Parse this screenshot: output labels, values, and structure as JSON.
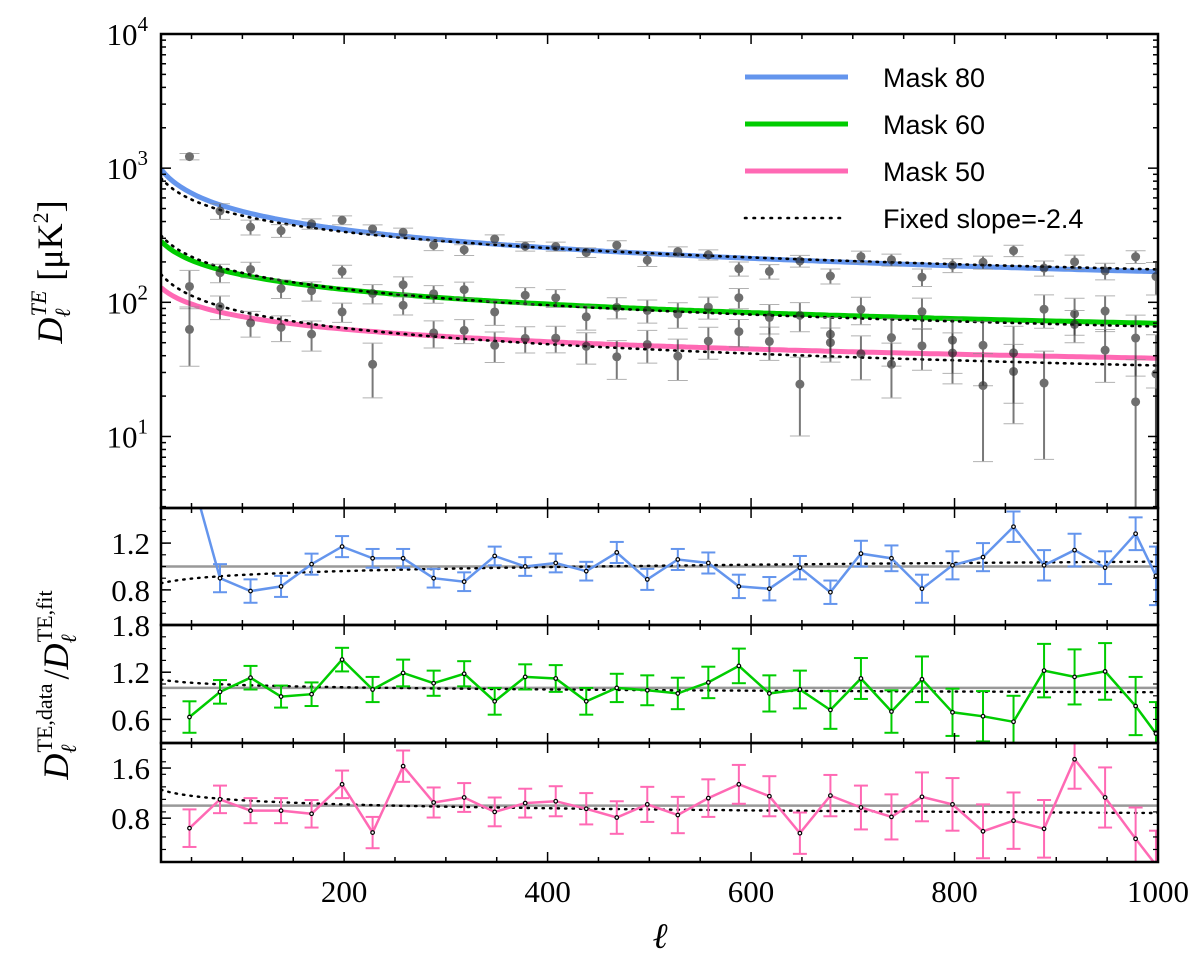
{
  "chart_data": {
    "type": "scatter",
    "title": "",
    "xlabel": "ℓ",
    "xlim": [
      20,
      1000
    ],
    "xticks": [
      200,
      400,
      600,
      800,
      1000
    ],
    "xtick_labels": [
      "200",
      "400",
      "600",
      "800",
      "1000"
    ],
    "main_panel": {
      "yscale": "log",
      "ylim": [
        2.93,
        10000
      ],
      "yticks": [
        10,
        100,
        1000,
        10000
      ],
      "ytick_labels": [
        {
          "base": "10",
          "exp": "1"
        },
        {
          "base": "10",
          "exp": "2"
        },
        {
          "base": "10",
          "exp": "3"
        },
        {
          "base": "10",
          "exp": "4"
        }
      ],
      "ylabel": {
        "symbol": "D",
        "sub": "ℓ",
        "sup": "TE",
        "unit_open": "[μK",
        "unit_sup": "2",
        "unit_close": "]"
      }
    },
    "ratio_panels": {
      "ylabel": {
        "num_symbol": "D",
        "num_sub": "ℓ",
        "num_sup": "TE,data",
        "slash": "/",
        "den_symbol": "D",
        "den_sub": "ℓ",
        "den_sup": "TE,fit"
      },
      "reference_line": 1.0,
      "panels": [
        {
          "series": "Mask 80",
          "ylim": [
            0.5,
            1.5
          ],
          "yticks": [
            0.8,
            1.2
          ],
          "ytick_labels": [
            "0.8",
            "1.2"
          ]
        },
        {
          "series": "Mask 60",
          "ylim": [
            0.3,
            1.8
          ],
          "yticks": [
            0.6,
            1.2,
            1.8
          ],
          "ytick_labels": [
            "0.6",
            "1.2",
            "1.8"
          ]
        },
        {
          "series": "Mask 50",
          "ylim": [
            0.1,
            2.0
          ],
          "yticks": [
            0.8,
            1.6
          ],
          "ytick_labels": [
            "0.8",
            "1.6"
          ]
        }
      ]
    },
    "legend": {
      "placement": "top-right",
      "entries": [
        "Mask 80",
        "Mask 60",
        "Mask 50",
        "Fixed slope=-2.4"
      ]
    },
    "fixed_slope": -2.4,
    "ell": [
      48,
      78,
      108,
      138,
      168,
      198,
      228,
      258,
      288,
      318,
      348,
      378,
      408,
      438,
      468,
      498,
      528,
      558,
      588,
      618,
      648,
      678,
      708,
      738,
      768,
      798,
      828,
      858,
      888,
      918,
      948,
      978,
      998
    ],
    "series": [
      {
        "name": "Mask 80",
        "color": "#6495ED",
        "fit_amplitude_at_1000": 169,
        "fit_slope": -2.45,
        "fixed_amplitude_at_1000": 176,
        "ratio": [
          1.84,
          0.9,
          0.79,
          0.83,
          1.02,
          1.17,
          1.07,
          1.07,
          0.9,
          0.87,
          1.09,
          1.0,
          1.03,
          0.96,
          1.12,
          0.89,
          1.06,
          1.03,
          0.83,
          0.81,
          0.99,
          0.78,
          1.11,
          1.07,
          0.81,
          1.01,
          1.08,
          1.34,
          1.01,
          1.14,
          0.99,
          1.28,
          0.92
        ],
        "ratio_err": [
          0.1,
          0.12,
          0.1,
          0.09,
          0.09,
          0.09,
          0.08,
          0.08,
          0.08,
          0.08,
          0.08,
          0.08,
          0.08,
          0.08,
          0.09,
          0.09,
          0.09,
          0.09,
          0.1,
          0.1,
          0.1,
          0.1,
          0.11,
          0.11,
          0.12,
          0.12,
          0.12,
          0.13,
          0.13,
          0.14,
          0.14,
          0.14,
          0.25
        ]
      },
      {
        "name": "Mask 60",
        "color": "#00CC00",
        "fit_amplitude_at_1000": 69.8,
        "fit_slope": -2.36,
        "fixed_amplitude_at_1000": 66,
        "ratio": [
          0.63,
          0.95,
          1.13,
          0.89,
          0.92,
          1.36,
          0.98,
          1.19,
          1.06,
          1.18,
          0.83,
          1.14,
          1.12,
          0.83,
          1.0,
          0.97,
          0.93,
          1.07,
          1.28,
          0.93,
          0.98,
          0.72,
          1.12,
          0.7,
          1.11,
          0.69,
          0.64,
          0.57,
          1.22,
          1.14,
          1.21,
          0.77,
          0.42
        ],
        "ratio_err": [
          0.2,
          0.15,
          0.15,
          0.14,
          0.15,
          0.15,
          0.16,
          0.17,
          0.16,
          0.16,
          0.17,
          0.16,
          0.17,
          0.17,
          0.18,
          0.19,
          0.2,
          0.2,
          0.22,
          0.23,
          0.24,
          0.24,
          0.26,
          0.27,
          0.29,
          0.3,
          0.32,
          0.33,
          0.34,
          0.35,
          0.36,
          0.37,
          0.4
        ]
      },
      {
        "name": "Mask 50",
        "color": "#FF69B4",
        "fit_amplitude_at_1000": 38.3,
        "fit_slope": -2.31,
        "fixed_amplitude_at_1000": 33.8,
        "ratio": [
          0.64,
          1.1,
          0.92,
          0.92,
          0.87,
          1.34,
          0.57,
          1.63,
          1.05,
          1.13,
          0.9,
          1.04,
          1.07,
          0.95,
          0.81,
          1.02,
          0.85,
          1.12,
          1.34,
          1.15,
          0.56,
          1.16,
          0.97,
          0.82,
          1.14,
          1.02,
          0.59,
          0.76,
          0.63,
          1.74,
          1.13,
          0.47,
          0.05
        ],
        "ratio_err": [
          0.3,
          0.22,
          0.2,
          0.2,
          0.22,
          0.22,
          0.25,
          0.25,
          0.24,
          0.23,
          0.23,
          0.23,
          0.24,
          0.25,
          0.26,
          0.28,
          0.29,
          0.3,
          0.31,
          0.32,
          0.33,
          0.33,
          0.35,
          0.36,
          0.39,
          0.42,
          0.43,
          0.45,
          0.46,
          0.47,
          0.48,
          0.5,
          0.55
        ]
      }
    ]
  }
}
